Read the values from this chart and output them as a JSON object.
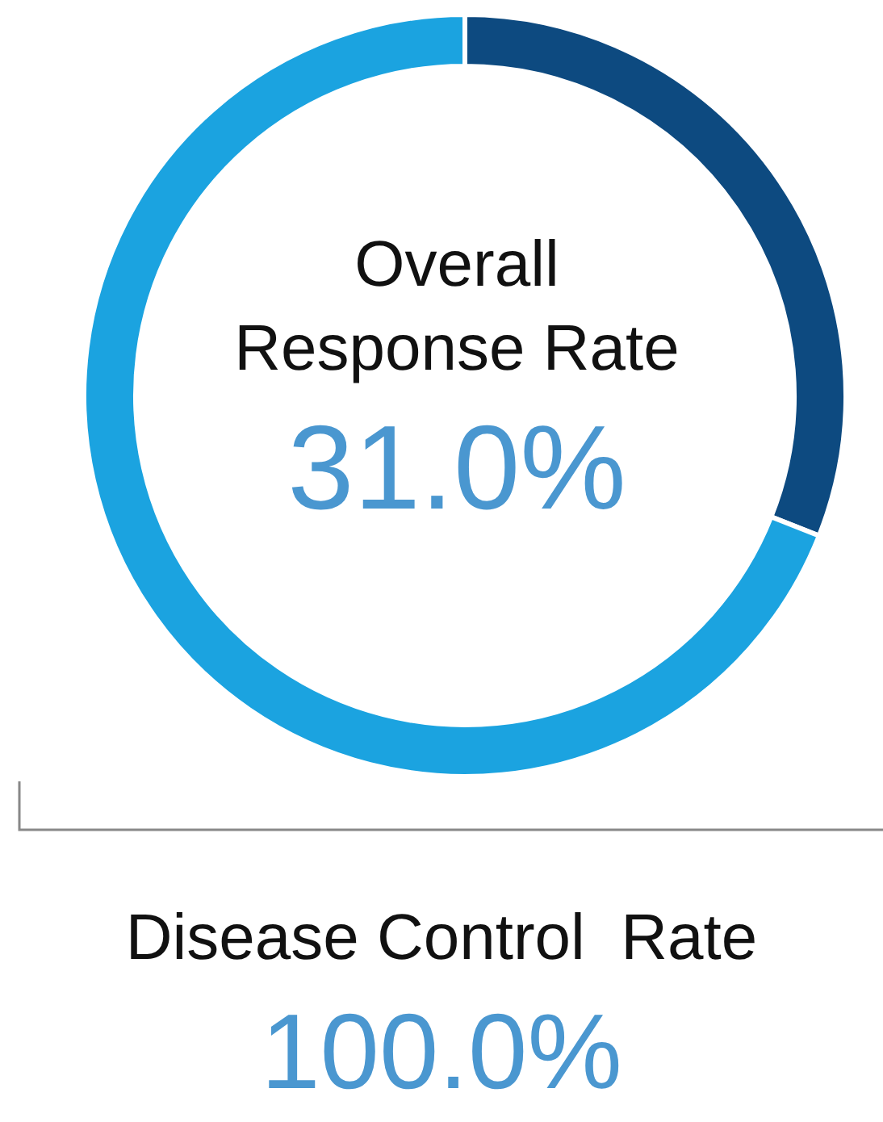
{
  "chart_data": {
    "type": "donut",
    "title": "Overall Response Rate",
    "categories": [
      null,
      null
    ],
    "values": [
      31,
      69
    ],
    "colors": [
      "#0d4a80",
      "#1ba3e0"
    ],
    "annotations": [
      "31.0%",
      "Disease Control  Rate",
      "100.0%"
    ]
  }
}
